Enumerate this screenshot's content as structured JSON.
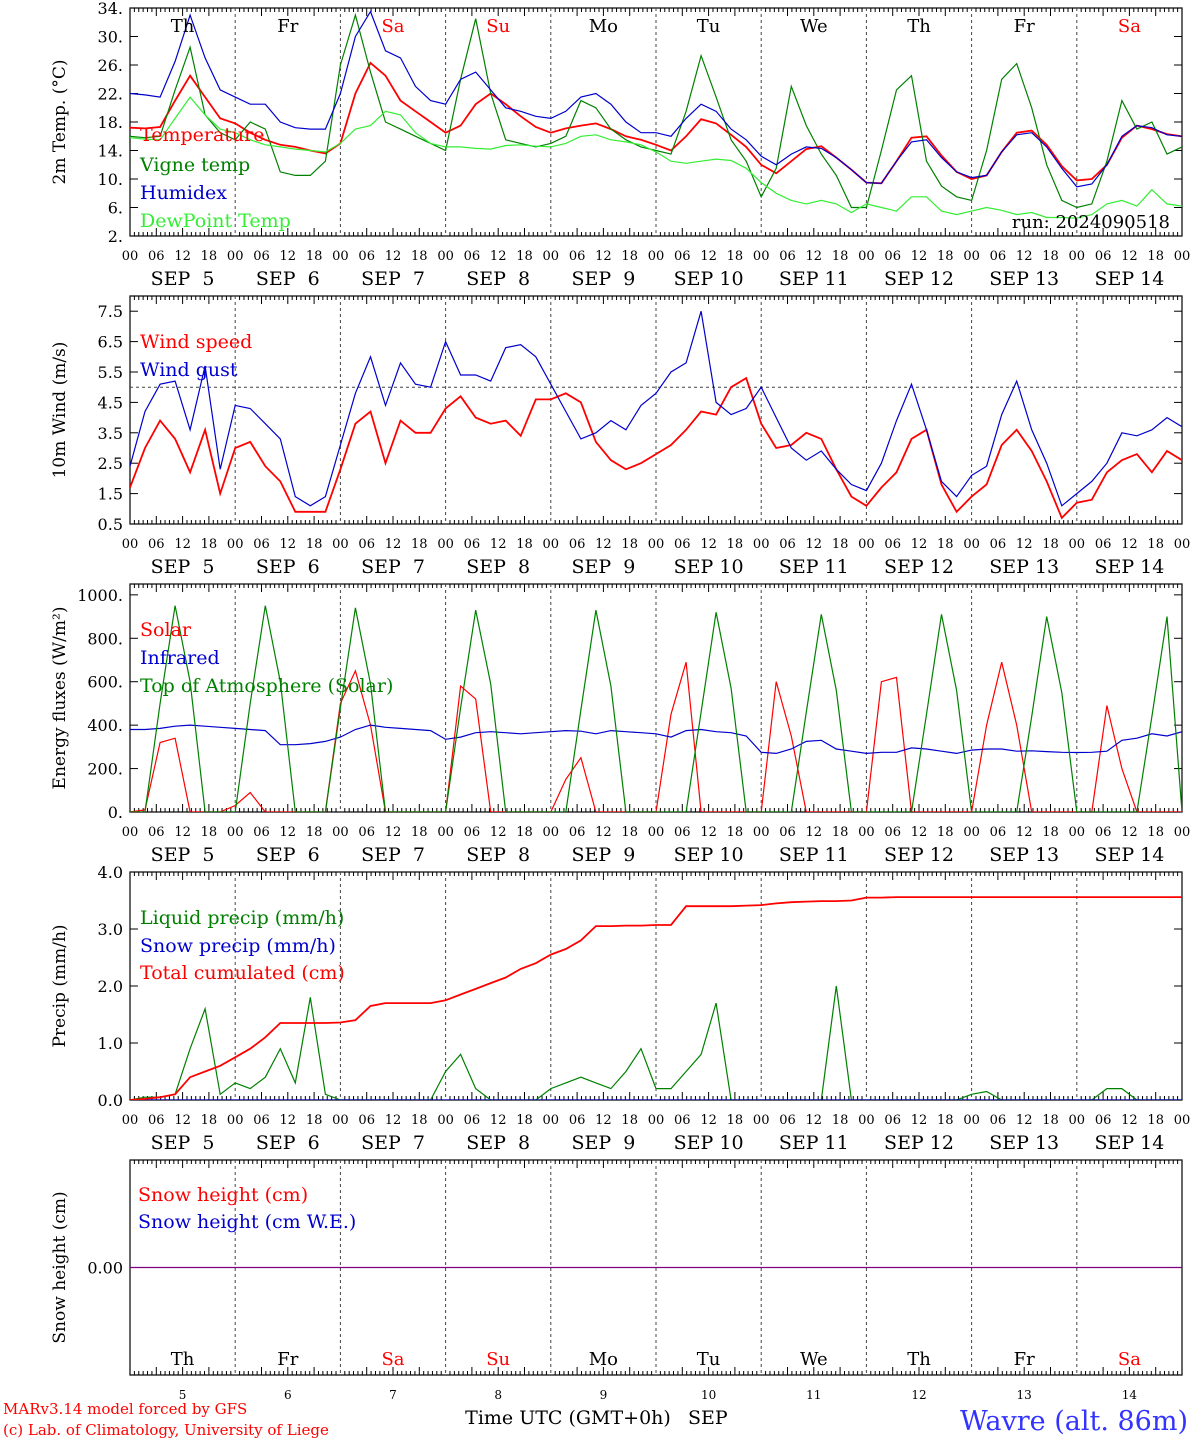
{
  "chart_data": [
    {
      "type": "line",
      "ylabel": "2m Temp. (°C)",
      "yticks": [
        "34.",
        "30.",
        "26.",
        "22.",
        "18.",
        "14.",
        "10.",
        "6.",
        "2."
      ],
      "ylim": [
        2,
        34
      ],
      "grid": "vertical dashed lines at day boundaries",
      "legend": "upper-left, inside",
      "run_label": "run: 2024090518",
      "series": [
        {
          "name": "Temperature",
          "color": "#ff0000",
          "values": [
            17.2,
            17.1,
            17.3,
            21.0,
            24.5,
            21.5,
            18.5,
            17.8,
            16.5,
            15.5,
            14.8,
            14.5,
            14.0,
            13.6,
            15.0,
            22.0,
            26.3,
            24.5,
            21.0,
            19.5,
            18.0,
            16.5,
            17.5,
            20.5,
            22.0,
            20.5,
            18.8,
            17.3,
            16.5,
            17.1,
            17.5,
            17.8,
            17.0,
            16.0,
            15.5,
            14.8,
            14.0,
            16.0,
            18.4,
            17.8,
            16.2,
            14.5,
            12.0,
            10.8,
            12.5,
            14.2,
            14.6,
            13.0,
            11.3,
            9.5,
            9.4,
            12.5,
            15.8,
            16.0,
            13.3,
            11.0,
            10.0,
            10.5,
            13.8,
            16.5,
            16.8,
            14.8,
            11.8,
            9.8,
            10.0,
            12.0,
            15.8,
            17.5,
            17.0,
            16.3,
            16.0
          ]
        },
        {
          "name": "Vigne temp",
          "color": "#008000",
          "values": [
            16.0,
            15.8,
            16.0,
            22.5,
            28.5,
            19.0,
            16.5,
            15.5,
            18.0,
            17.0,
            11.0,
            10.5,
            10.5,
            12.5,
            26.0,
            33.0,
            25.0,
            18.0,
            17.0,
            16.0,
            15.0,
            14.0,
            24.0,
            32.5,
            22.0,
            15.5,
            15.0,
            14.5,
            15.0,
            16.0,
            21.0,
            20.0,
            17.0,
            15.5,
            14.5,
            14.0,
            13.5,
            19.5,
            27.3,
            21.5,
            15.5,
            12.5,
            7.5,
            11.5,
            23.0,
            17.5,
            13.5,
            10.5,
            6.0,
            6.0,
            14.0,
            22.5,
            24.5,
            12.5,
            9.0,
            7.5,
            7.0,
            14.0,
            24.0,
            26.2,
            20.0,
            12.0,
            7.0,
            6.0,
            6.5,
            12.5,
            21.0,
            17.0,
            18.0,
            13.5,
            14.5
          ]
        },
        {
          "name": "Humidex",
          "color": "#0000cc",
          "values": [
            22.0,
            21.8,
            21.5,
            26.5,
            33.0,
            27.0,
            22.5,
            21.5,
            20.5,
            20.5,
            18.0,
            17.2,
            17.0,
            17.0,
            22.0,
            30.0,
            33.5,
            28.0,
            27.0,
            23.0,
            21.0,
            20.5,
            24.0,
            25.0,
            22.5,
            20.0,
            19.5,
            18.8,
            18.5,
            19.5,
            21.5,
            22.0,
            20.5,
            18.0,
            16.5,
            16.5,
            16.0,
            18.5,
            20.5,
            19.5,
            17.0,
            15.5,
            13.2,
            12.0,
            13.5,
            14.5,
            14.3,
            13.0,
            11.3,
            9.5,
            9.4,
            12.5,
            15.2,
            15.5,
            13.0,
            11.0,
            10.2,
            10.5,
            13.8,
            16.2,
            16.5,
            14.5,
            11.5,
            8.9,
            9.3,
            12.0,
            16.0,
            17.5,
            17.2,
            16.2,
            16.0
          ]
        },
        {
          "name": "DewPoint Temp",
          "color": "#33ee33",
          "values": [
            15.8,
            15.6,
            15.5,
            18.5,
            21.5,
            19.0,
            17.0,
            16.5,
            15.5,
            14.8,
            14.5,
            14.2,
            14.0,
            13.8,
            15.0,
            17.0,
            17.5,
            19.5,
            19.0,
            16.5,
            15.0,
            14.5,
            14.5,
            14.3,
            14.2,
            14.7,
            14.8,
            14.6,
            14.5,
            15.0,
            16.0,
            16.2,
            15.5,
            15.2,
            14.8,
            13.8,
            12.5,
            12.2,
            12.5,
            12.8,
            12.6,
            11.5,
            9.5,
            8.0,
            7.0,
            6.5,
            7.0,
            6.5,
            5.3,
            6.5,
            6.0,
            5.5,
            7.5,
            7.5,
            5.5,
            5.0,
            5.5,
            6.0,
            5.6,
            5.0,
            5.3,
            4.6,
            4.6,
            4.5,
            5.0,
            6.5,
            7.0,
            6.2,
            8.5,
            6.5,
            6.2
          ]
        }
      ]
    },
    {
      "type": "line",
      "ylabel": "10m Wind (m/s)",
      "yticks": [
        "7.5",
        "6.5",
        "5.5",
        "4.5",
        "3.5",
        "2.5",
        "1.5",
        "0.5"
      ],
      "ylim": [
        0.5,
        8
      ],
      "reference_line": 5.0,
      "legend": "upper-left, inside",
      "series": [
        {
          "name": "Wind speed",
          "color": "#ff0000",
          "values": [
            1.7,
            3.0,
            3.9,
            3.3,
            2.2,
            3.6,
            1.5,
            3.0,
            3.2,
            2.4,
            1.9,
            0.9,
            0.9,
            0.9,
            2.3,
            3.8,
            4.2,
            2.5,
            3.9,
            3.5,
            3.5,
            4.3,
            4.7,
            4.0,
            3.8,
            3.9,
            3.4,
            4.6,
            4.6,
            4.8,
            4.5,
            3.2,
            2.6,
            2.3,
            2.5,
            2.8,
            3.1,
            3.6,
            4.2,
            4.1,
            5.0,
            5.3,
            3.8,
            3.0,
            3.1,
            3.5,
            3.3,
            2.3,
            1.4,
            1.1,
            1.7,
            2.2,
            3.3,
            3.6,
            1.8,
            0.9,
            1.4,
            1.8,
            3.1,
            3.6,
            2.9,
            1.9,
            0.7,
            1.2,
            1.3,
            2.2,
            2.6,
            2.8,
            2.2,
            2.9,
            2.6
          ]
        },
        {
          "name": "Wind gust",
          "color": "#0000cc",
          "values": [
            2.4,
            4.2,
            5.1,
            5.2,
            3.6,
            5.7,
            2.3,
            4.4,
            4.3,
            3.8,
            3.3,
            1.4,
            1.1,
            1.4,
            3.1,
            4.8,
            6.0,
            4.4,
            5.8,
            5.1,
            5.0,
            6.5,
            5.4,
            5.4,
            5.2,
            6.3,
            6.4,
            6.0,
            5.1,
            4.2,
            3.3,
            3.5,
            3.9,
            3.6,
            4.4,
            4.8,
            5.5,
            5.8,
            7.5,
            4.5,
            4.1,
            4.3,
            5.0,
            4.0,
            3.0,
            2.6,
            2.9,
            2.3,
            1.8,
            1.6,
            2.5,
            3.9,
            5.1,
            3.6,
            1.9,
            1.4,
            2.1,
            2.4,
            4.1,
            5.2,
            3.6,
            2.5,
            1.1,
            1.5,
            1.9,
            2.5,
            3.5,
            3.4,
            3.6,
            4.0,
            3.7
          ]
        }
      ]
    },
    {
      "type": "line",
      "ylabel": "Energy fluxes (W/m²)",
      "yticks": [
        "1000.",
        "800.",
        "600.",
        "400.",
        "200.",
        "0."
      ],
      "ylim": [
        0,
        1000
      ],
      "legend": "upper-left, inside",
      "series": [
        {
          "name": "Solar",
          "color": "#ff0000",
          "values": [
            0,
            10,
            320,
            340,
            0,
            0,
            0,
            30,
            90,
            0,
            0,
            0,
            0,
            0,
            500,
            650,
            400,
            0,
            0,
            0,
            0,
            0,
            580,
            520,
            0,
            0,
            0,
            0,
            0,
            150,
            250,
            0,
            0,
            0,
            0,
            0,
            450,
            690,
            0,
            0,
            0,
            0,
            0,
            600,
            350,
            0,
            0,
            0,
            0,
            0,
            600,
            620,
            0,
            0,
            0,
            0,
            0,
            400,
            690,
            400,
            0,
            0,
            0,
            0,
            0,
            490,
            200,
            0,
            0,
            0,
            0
          ]
        },
        {
          "name": "Infrared",
          "color": "#0000cc",
          "values": [
            380,
            380,
            385,
            395,
            400,
            395,
            390,
            385,
            380,
            375,
            310,
            310,
            315,
            325,
            345,
            380,
            400,
            390,
            385,
            380,
            375,
            335,
            345,
            365,
            370,
            365,
            360,
            365,
            370,
            375,
            372,
            360,
            375,
            370,
            365,
            360,
            345,
            375,
            380,
            370,
            365,
            350,
            275,
            270,
            290,
            325,
            330,
            290,
            280,
            270,
            275,
            275,
            295,
            290,
            280,
            270,
            285,
            290,
            290,
            280,
            282,
            278,
            275,
            274,
            275,
            280,
            330,
            340,
            360,
            350,
            370
          ]
        },
        {
          "name": "Top of Atmosphere (Solar)",
          "color": "#008000",
          "values": [
            0,
            0,
            500,
            950,
            600,
            0,
            0,
            0,
            500,
            950,
            600,
            0,
            0,
            0,
            480,
            940,
            590,
            0,
            0,
            0,
            0,
            0,
            480,
            930,
            590,
            0,
            0,
            0,
            0,
            0,
            470,
            930,
            580,
            0,
            0,
            0,
            0,
            0,
            460,
            920,
            570,
            0,
            0,
            0,
            0,
            460,
            910,
            560,
            0,
            0,
            0,
            0,
            0,
            450,
            910,
            560,
            0,
            0,
            0,
            0,
            440,
            900,
            550,
            0,
            0,
            0,
            0,
            0,
            440,
            900,
            0
          ]
        }
      ]
    },
    {
      "type": "line",
      "ylabel": "Precip (mm/h)",
      "yticks": [
        "4.0",
        "3.0",
        "2.0",
        "1.0",
        "0.0"
      ],
      "ylim": [
        0,
        4
      ],
      "legend": "upper-left, inside",
      "series": [
        {
          "name": "Liquid precip (mm/h)",
          "color": "#008000",
          "values": [
            0,
            0.05,
            0.05,
            0.1,
            0.9,
            1.6,
            0.1,
            0.3,
            0.2,
            0.4,
            0.9,
            0.3,
            1.8,
            0.1,
            0,
            0,
            0,
            0,
            0,
            0,
            0,
            0.5,
            0.8,
            0.2,
            0,
            0,
            0,
            0,
            0.2,
            0.3,
            0.4,
            0.3,
            0.2,
            0.5,
            0.9,
            0.2,
            0.2,
            0.5,
            0.8,
            1.7,
            0,
            0,
            0,
            0,
            0,
            0,
            0,
            2.0,
            0,
            0,
            0,
            0,
            0,
            0,
            0,
            0,
            0.1,
            0.15,
            0,
            0,
            0,
            0,
            0,
            0,
            0,
            0.2,
            0.2,
            0,
            0,
            0,
            0
          ]
        },
        {
          "name": "Snow precip (mm/h)",
          "color": "#0000cc",
          "values": [
            0,
            0,
            0,
            0,
            0,
            0,
            0,
            0,
            0,
            0,
            0,
            0,
            0,
            0,
            0,
            0,
            0,
            0,
            0,
            0,
            0,
            0,
            0,
            0,
            0,
            0,
            0,
            0,
            0,
            0,
            0,
            0,
            0,
            0,
            0,
            0,
            0,
            0,
            0,
            0,
            0,
            0,
            0,
            0,
            0,
            0,
            0,
            0,
            0,
            0,
            0,
            0,
            0,
            0,
            0,
            0,
            0,
            0,
            0,
            0,
            0,
            0,
            0,
            0,
            0,
            0,
            0,
            0,
            0,
            0,
            0
          ]
        },
        {
          "name": "Total cumulated (cm)",
          "color": "#ff0000",
          "values": [
            0,
            0.02,
            0.05,
            0.1,
            0.4,
            0.5,
            0.6,
            0.75,
            0.9,
            1.1,
            1.35,
            1.35,
            1.35,
            1.35,
            1.36,
            1.4,
            1.65,
            1.7,
            1.7,
            1.7,
            1.7,
            1.75,
            1.85,
            1.95,
            2.05,
            2.15,
            2.3,
            2.4,
            2.55,
            2.65,
            2.8,
            3.05,
            3.05,
            3.06,
            3.06,
            3.07,
            3.07,
            3.4,
            3.4,
            3.4,
            3.4,
            3.41,
            3.42,
            3.45,
            3.47,
            3.48,
            3.49,
            3.49,
            3.5,
            3.55,
            3.55,
            3.56,
            3.56,
            3.56,
            3.56,
            3.56,
            3.56,
            3.56,
            3.56,
            3.56,
            3.56,
            3.56,
            3.56,
            3.56,
            3.56,
            3.56,
            3.56,
            3.56,
            3.56,
            3.56,
            3.56
          ]
        }
      ]
    },
    {
      "type": "line",
      "ylabel": "Snow height (cm)",
      "yticks": [
        "0.00"
      ],
      "legend": "upper-left, inside",
      "series": [
        {
          "name": "Snow height (cm)",
          "color": "#ff0000",
          "values": [
            0,
            0
          ]
        },
        {
          "name": "Snow height (cm W.E.)",
          "color": "#0000cc",
          "values": [
            0,
            0
          ]
        }
      ],
      "day_labels": [
        "Th",
        "Fr",
        "Sa",
        "Su",
        "Mo",
        "Tu",
        "We",
        "Th",
        "Fr",
        "Sa"
      ],
      "day_numbers": [
        "5",
        "6",
        "7",
        "8",
        "9",
        "10",
        "11",
        "12",
        "13",
        "14"
      ]
    }
  ],
  "top_day_labels": [
    "Th",
    "Fr",
    "Sa",
    "Su",
    "Mo",
    "Tu",
    "We",
    "Th",
    "Fr",
    "Sa"
  ],
  "weekend_color": "#ff0000",
  "hour_ticks": [
    "00",
    "06",
    "12",
    "18"
  ],
  "date_labels": [
    "SEP  5",
    "SEP  6",
    "SEP  7",
    "SEP  8",
    "SEP  9",
    "SEP 10",
    "SEP 11",
    "SEP 12",
    "SEP 13",
    "SEP 14"
  ],
  "footer": {
    "credit1": "MARv3.14 model forced by GFS",
    "credit2": "(c) Lab. of Climatology, University of Liege",
    "xlabel": "Time UTC (GMT+0h)",
    "month": "SEP",
    "station": "Wavre (alt. 86m)"
  }
}
